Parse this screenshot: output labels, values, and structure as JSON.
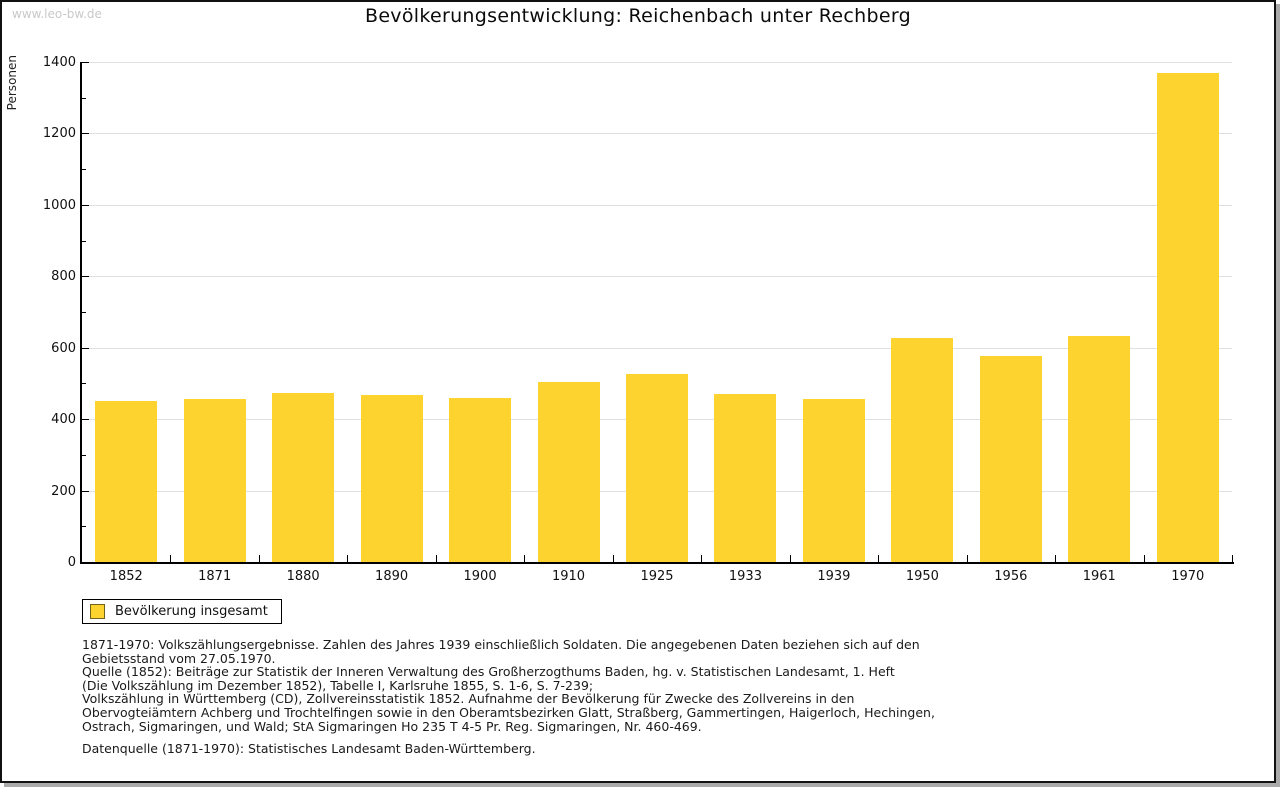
{
  "watermark": "www.leo-bw.de",
  "title": "Bevölkerungsentwicklung: Reichenbach unter Rechberg",
  "legend": {
    "label": "Bevölkerung insgesamt",
    "swatch_color": "#fcd32f"
  },
  "chart_data": {
    "type": "bar",
    "title": "Bevölkerungsentwicklung: Reichenbach unter Rechberg",
    "xlabel": "",
    "ylabel": "Personen",
    "categories": [
      "1852",
      "1871",
      "1880",
      "1890",
      "1900",
      "1910",
      "1925",
      "1933",
      "1939",
      "1950",
      "1956",
      "1961",
      "1970"
    ],
    "values": [
      452,
      457,
      473,
      469,
      458,
      503,
      526,
      471,
      457,
      627,
      578,
      634,
      1370
    ],
    "series_name": "Bevölkerung insgesamt",
    "ylim": [
      0,
      1400
    ],
    "yticks": [
      0,
      200,
      400,
      600,
      800,
      1000,
      1200,
      1400
    ],
    "y_minor_step": 100,
    "grid": true,
    "legend_position": "bottom-left",
    "bar_color": "#fcd32f",
    "grid_color": "#e0e0e0",
    "axis_color": "#000000"
  },
  "footnotes": {
    "lines": [
      "1871-1970: Volkszählungsergebnisse. Zahlen des Jahres 1939 einschließlich Soldaten. Die angegebenen Daten beziehen sich auf den",
      "Gebietsstand vom 27.05.1970.",
      "Quelle (1852): Beiträge zur Statistik der Inneren Verwaltung des Großherzogthums Baden, hg. v. Statistischen Landesamt, 1. Heft",
      "(Die Volkszählung im Dezember 1852), Tabelle I, Karlsruhe 1855, S. 1-6, S. 7-239;",
      "Volkszählung in Württemberg (CD), Zollvereinsstatistik 1852. Aufnahme der Bevölkerung für Zwecke des Zollvereins in den",
      "Obervogteiämtern Achberg und Trochtelfingen sowie in den Oberamtsbezirken Glatt, Straßberg, Gammertingen, Haigerloch, Hechingen,",
      "Ostrach, Sigmaringen, und Wald; StA Sigmaringen Ho 235 T 4-5 Pr. Reg. Sigmaringen, Nr. 460-469."
    ],
    "datasource": "Datenquelle (1871-1970): Statistisches Landesamt Baden-Württemberg."
  }
}
